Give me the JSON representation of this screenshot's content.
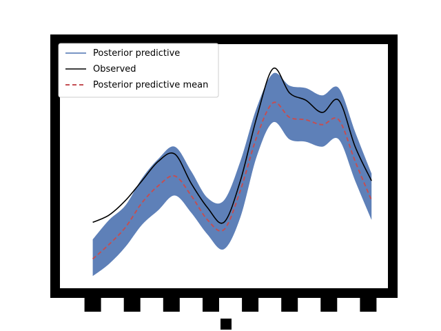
{
  "chart_data": {
    "type": "line",
    "legend": {
      "placement": "top-left",
      "entries": [
        {
          "label": "Posterior predictive",
          "color": "#4c72b0",
          "style": "solid"
        },
        {
          "label": "Observed",
          "color": "#000000",
          "style": "solid"
        },
        {
          "label": "Posterior predictive mean",
          "color": "#c44e52",
          "style": "dashed"
        }
      ]
    },
    "xlim": [
      0,
      1
    ],
    "ylim": [
      0,
      1
    ],
    "grid": false,
    "series": [
      {
        "name": "Observed",
        "color": "#000000",
        "x": [
          0.1,
          0.15,
          0.2,
          0.25,
          0.3,
          0.35,
          0.4,
          0.45,
          0.5,
          0.55,
          0.6,
          0.65,
          0.7,
          0.75,
          0.8,
          0.85,
          0.9,
          0.95
        ],
        "y": [
          0.27,
          0.3,
          0.36,
          0.44,
          0.52,
          0.55,
          0.43,
          0.33,
          0.27,
          0.44,
          0.7,
          0.9,
          0.8,
          0.77,
          0.72,
          0.77,
          0.58,
          0.44
        ]
      },
      {
        "name": "Posterior predictive mean",
        "color": "#c44e52",
        "x": [
          0.1,
          0.15,
          0.2,
          0.25,
          0.3,
          0.35,
          0.4,
          0.45,
          0.5,
          0.55,
          0.6,
          0.65,
          0.7,
          0.75,
          0.8,
          0.85,
          0.9,
          0.95
        ],
        "y": [
          0.12,
          0.18,
          0.25,
          0.35,
          0.42,
          0.46,
          0.38,
          0.28,
          0.24,
          0.4,
          0.62,
          0.76,
          0.7,
          0.69,
          0.67,
          0.69,
          0.52,
          0.36
        ]
      }
    ],
    "band": {
      "name": "Posterior predictive",
      "color": "#4c72b0",
      "x": [
        0.1,
        0.15,
        0.2,
        0.25,
        0.3,
        0.35,
        0.4,
        0.45,
        0.5,
        0.55,
        0.6,
        0.65,
        0.7,
        0.75,
        0.8,
        0.85,
        0.9,
        0.95
      ],
      "lower": [
        0.05,
        0.1,
        0.17,
        0.26,
        0.32,
        0.38,
        0.31,
        0.22,
        0.16,
        0.29,
        0.54,
        0.68,
        0.61,
        0.6,
        0.58,
        0.61,
        0.44,
        0.28
      ],
      "upper": [
        0.2,
        0.28,
        0.34,
        0.45,
        0.53,
        0.58,
        0.48,
        0.37,
        0.36,
        0.52,
        0.74,
        0.88,
        0.83,
        0.82,
        0.79,
        0.82,
        0.64,
        0.47
      ]
    }
  }
}
